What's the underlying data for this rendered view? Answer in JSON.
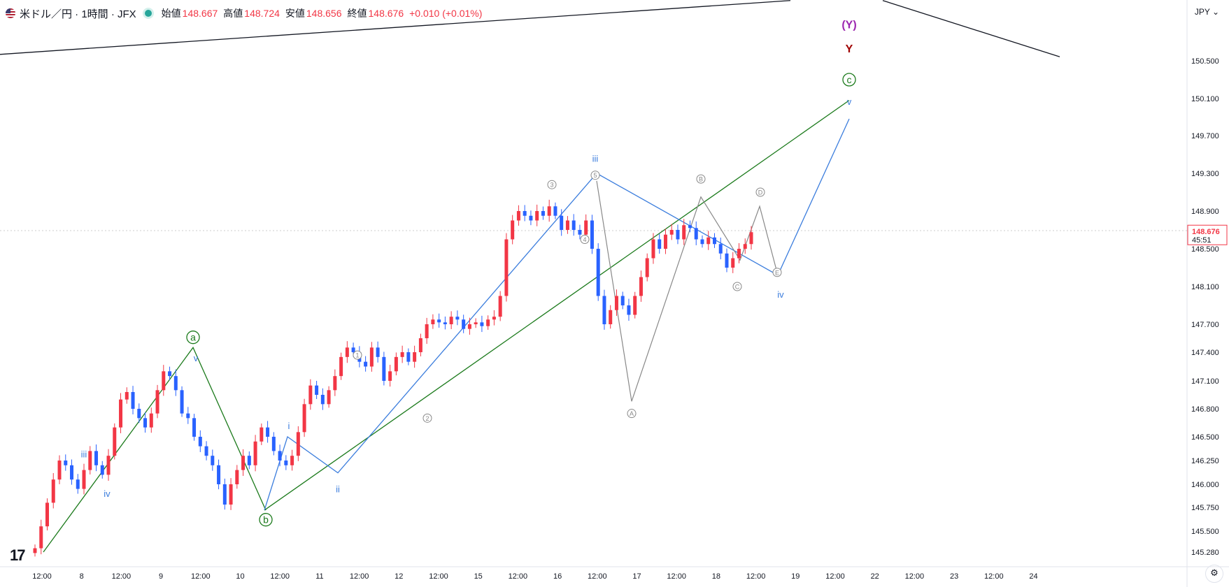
{
  "header": {
    "symbol": "米ドル／円 · 1時間 · JFX",
    "open_label": "始値",
    "open": "148.667",
    "high_label": "高値",
    "high": "148.724",
    "low_label": "安値",
    "low": "148.656",
    "close_label": "終値",
    "close": "148.676",
    "change": "+0.010 (+0.01%)"
  },
  "currency_selector": "JPY ⌄",
  "logo": "17",
  "tz_button": "⚙",
  "colors": {
    "up": "#f23645",
    "down": "#2962ff",
    "green": "#1b7a1b",
    "blue": "#3b7ddd",
    "gray": "#888888",
    "dark_red": "#a00000",
    "purple": "#9c27b0"
  },
  "chart_data": {
    "type": "candlestick",
    "title": "米ドル／円 · 1時間 · JFX",
    "price_axis": {
      "ticks": [
        "150.500",
        "150.100",
        "149.700",
        "149.300",
        "148.900",
        "148.500",
        "148.100",
        "147.700",
        "147.400",
        "147.100",
        "146.800",
        "146.500",
        "146.250",
        "146.000",
        "145.750",
        "145.500",
        "145.280"
      ],
      "current_price": "148.676",
      "countdown": "45:51"
    },
    "time_axis": {
      "ticks": [
        "12:00",
        "8",
        "12:00",
        "9",
        "12:00",
        "10",
        "12:00",
        "11",
        "12:00",
        "12",
        "12:00",
        "15",
        "12:00",
        "16",
        "12:00",
        "17",
        "12:00",
        "18",
        "12:00",
        "19",
        "12:00",
        "22",
        "12:00",
        "23",
        "12:00",
        "24"
      ]
    },
    "ohlc_path": [
      145.32,
      145.55,
      145.8,
      146.05,
      146.25,
      146.2,
      146.05,
      145.95,
      146.15,
      146.35,
      146.2,
      146.1,
      146.3,
      146.6,
      146.9,
      146.98,
      146.8,
      146.7,
      146.6,
      146.75,
      147.0,
      147.2,
      147.15,
      147.0,
      146.75,
      146.7,
      146.5,
      146.4,
      146.3,
      146.2,
      146.0,
      145.78,
      146.0,
      146.15,
      146.3,
      146.2,
      146.45,
      146.6,
      146.5,
      146.35,
      146.25,
      146.2,
      146.3,
      146.55,
      146.85,
      147.05,
      146.95,
      146.85,
      147.0,
      147.15,
      147.35,
      147.45,
      147.4,
      147.3,
      147.25,
      147.45,
      147.35,
      147.1,
      147.2,
      147.35,
      147.4,
      147.3,
      147.4,
      147.55,
      147.7,
      147.75,
      147.72,
      147.7,
      147.78,
      147.75,
      147.65,
      147.7,
      147.72,
      147.68,
      147.75,
      147.78,
      148.0,
      148.6,
      148.8,
      148.9,
      148.85,
      148.8,
      148.9,
      148.85,
      148.95,
      148.85,
      148.7,
      148.8,
      148.7,
      148.65,
      148.8,
      148.5,
      148.0,
      147.7,
      147.85,
      148.0,
      147.9,
      147.8,
      148.0,
      148.2,
      148.4,
      148.6,
      148.5,
      148.65,
      148.7,
      148.6,
      148.75,
      148.72,
      148.6,
      148.55,
      148.62,
      148.55,
      148.45,
      148.3,
      148.4,
      148.5,
      148.55,
      148.676
    ],
    "trendlines": [
      {
        "name": "upper-channel",
        "color": "#131722",
        "points": [
          [
            0,
            150.58
          ],
          [
            1130,
            151.25
          ]
        ]
      },
      {
        "name": "upper-channel-2",
        "color": "#131722",
        "points": [
          [
            1262,
            151.25
          ],
          [
            1515,
            150.55
          ]
        ]
      },
      {
        "name": "green-channel",
        "color": "#1b7a1b",
        "points": [
          [
            378,
            145.72
          ],
          [
            1214,
            150.08
          ]
        ]
      },
      {
        "name": "wave-a-b-c",
        "color": "#1b7a1b",
        "points": [
          [
            62,
            145.28
          ],
          [
            276,
            147.45
          ],
          [
            380,
            145.72
          ]
        ]
      },
      {
        "name": "blue-impulse",
        "color": "#3b7ddd",
        "points": [
          [
            378,
            145.72
          ],
          [
            411,
            146.5
          ],
          [
            483,
            146.12
          ],
          [
            853,
            149.3
          ],
          [
            1112,
            148.22
          ],
          [
            1214,
            149.88
          ]
        ]
      },
      {
        "name": "gray-abcde",
        "color": "#888888",
        "points": [
          [
            853,
            149.22
          ],
          [
            903,
            146.88
          ],
          [
            1002,
            149.05
          ],
          [
            1058,
            148.38
          ],
          [
            1086,
            148.95
          ],
          [
            1112,
            148.22
          ]
        ]
      }
    ],
    "annotations": [
      {
        "text": "a",
        "circle": true,
        "color": "#1b7a1b",
        "x": 276,
        "price": 147.56
      },
      {
        "text": "b",
        "circle": true,
        "color": "#1b7a1b",
        "x": 380,
        "price": 145.62
      },
      {
        "text": "c",
        "circle": true,
        "color": "#1b7a1b",
        "x": 1214,
        "price": 150.3
      },
      {
        "text": "v",
        "color": "#3b7ddd",
        "x": 280,
        "price": 147.34
      },
      {
        "text": "iii",
        "color": "#3b7ddd",
        "x": 120,
        "price": 146.32
      },
      {
        "text": "iv",
        "color": "#3b7ddd",
        "x": 153,
        "price": 145.9
      },
      {
        "text": "i",
        "color": "#3b7ddd",
        "x": 413,
        "price": 146.62
      },
      {
        "text": "ii",
        "color": "#3b7ddd",
        "x": 483,
        "price": 145.95
      },
      {
        "text": "iii",
        "color": "#3b7ddd",
        "x": 851,
        "price": 149.46
      },
      {
        "text": "iv",
        "color": "#3b7ddd",
        "x": 1116,
        "price": 148.02
      },
      {
        "text": "v",
        "color": "#3b7ddd",
        "x": 1214,
        "price": 150.07
      },
      {
        "text": "1",
        "circle": true,
        "color": "#888888",
        "x": 511,
        "price": 147.37
      },
      {
        "text": "2",
        "circle": true,
        "color": "#888888",
        "x": 611,
        "price": 146.7
      },
      {
        "text": "3",
        "circle": true,
        "color": "#888888",
        "x": 789,
        "price": 149.18
      },
      {
        "text": "4",
        "circle": true,
        "color": "#888888",
        "x": 836,
        "price": 148.6
      },
      {
        "text": "5",
        "circle": true,
        "color": "#888888",
        "x": 851,
        "price": 149.28
      },
      {
        "text": "A",
        "circle": true,
        "color": "#888888",
        "x": 903,
        "price": 146.75
      },
      {
        "text": "B",
        "circle": true,
        "color": "#888888",
        "x": 1002,
        "price": 149.24
      },
      {
        "text": "C",
        "circle": true,
        "color": "#888888",
        "x": 1054,
        "price": 148.1
      },
      {
        "text": "D",
        "circle": true,
        "color": "#888888",
        "x": 1087,
        "price": 149.1
      },
      {
        "text": "E",
        "circle": true,
        "color": "#888888",
        "x": 1111,
        "price": 148.25
      },
      {
        "text": "Y",
        "color": "#a00000",
        "x": 1214,
        "price": 150.65
      },
      {
        "text": "(Y)",
        "color": "#9c27b0",
        "x": 1214,
        "price": 150.95
      }
    ]
  }
}
